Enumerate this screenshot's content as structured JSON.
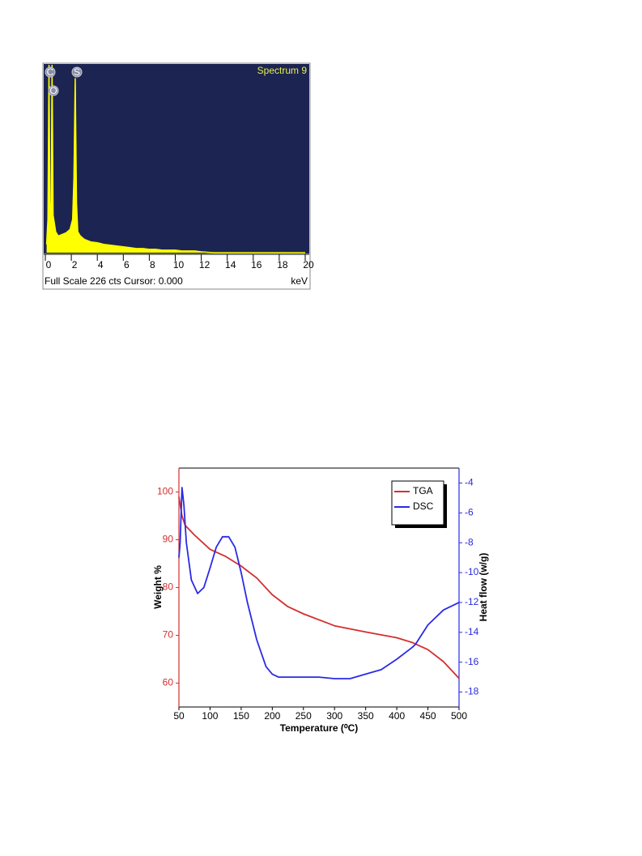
{
  "chart_data": [
    {
      "type": "spectrum",
      "title": "Spectrum 9",
      "peak_labels": [
        "C",
        "O",
        "S"
      ],
      "x": [
        0.1,
        0.2,
        0.28,
        0.35,
        0.45,
        0.52,
        0.6,
        0.8,
        1.0,
        1.3,
        1.6,
        1.9,
        2.1,
        2.2,
        2.3,
        2.4,
        2.5,
        2.7,
        3.0,
        3.5,
        4,
        4.5,
        5,
        5.5,
        6,
        6.5,
        7,
        7.5,
        8,
        8.5,
        9,
        9.5,
        10,
        10.5,
        11,
        11.5,
        12,
        13,
        14,
        16,
        18,
        20
      ],
      "values": [
        10,
        40,
        226,
        60,
        50,
        226,
        45,
        25,
        20,
        22,
        24,
        28,
        40,
        90,
        210,
        60,
        25,
        20,
        16,
        13,
        12,
        10,
        9,
        8,
        7,
        6,
        5,
        5,
        4,
        4,
        3,
        3,
        3,
        2,
        2,
        2,
        1,
        0,
        0,
        0,
        0,
        0
      ],
      "xlim": [
        0,
        20
      ],
      "xticks": [
        0,
        2,
        4,
        6,
        8,
        10,
        12,
        14,
        16,
        18,
        20
      ],
      "ylim": [
        0,
        226
      ],
      "x_unit": "keV",
      "footer": "Full Scale 226 cts Cursor: 0.000",
      "color": "#ffff00",
      "background": "#1c2452"
    },
    {
      "type": "line",
      "xlabel": "Temperature (⁰C)",
      "ylabel": "Weight %",
      "y2label": "Heat flow (w/g)",
      "xlim": [
        50,
        500
      ],
      "xticks": [
        50,
        100,
        150,
        200,
        250,
        300,
        350,
        400,
        450,
        500
      ],
      "ylim": [
        55,
        105
      ],
      "yticks": [
        60,
        70,
        80,
        90,
        100
      ],
      "y2lim": [
        -19,
        -3
      ],
      "y2ticks": [
        -18,
        -16,
        -14,
        -12,
        -10,
        -8,
        -6,
        -4
      ],
      "legend": "upper right",
      "series": [
        {
          "name": "TGA",
          "color": "#d32f2f",
          "x": [
            50,
            55,
            60,
            75,
            100,
            125,
            150,
            175,
            200,
            225,
            250,
            300,
            350,
            400,
            425,
            450,
            475,
            500
          ],
          "values": [
            99,
            95,
            93,
            91,
            88,
            86.5,
            84.5,
            82,
            78.5,
            76,
            74.5,
            72,
            70.7,
            69.5,
            68.5,
            67,
            64.5,
            61
          ]
        },
        {
          "name": "DSC",
          "color": "#2a2ae6",
          "axis": "y2",
          "x": [
            50,
            52,
            55,
            58,
            62,
            70,
            80,
            90,
            100,
            110,
            120,
            130,
            140,
            150,
            160,
            175,
            190,
            200,
            210,
            225,
            250,
            275,
            300,
            325,
            350,
            375,
            400,
            425,
            430,
            450,
            475,
            500
          ],
          "values": [
            -9,
            -8,
            -4.3,
            -5.5,
            -8,
            -10.5,
            -11.4,
            -11,
            -9.7,
            -8.3,
            -7.6,
            -7.6,
            -8.3,
            -10,
            -12,
            -14.5,
            -16.3,
            -16.8,
            -17,
            -17,
            -17,
            -17,
            -17.1,
            -17.1,
            -16.8,
            -16.5,
            -15.8,
            -15,
            -14.8,
            -13.5,
            -12.5,
            -12
          ]
        }
      ]
    }
  ]
}
